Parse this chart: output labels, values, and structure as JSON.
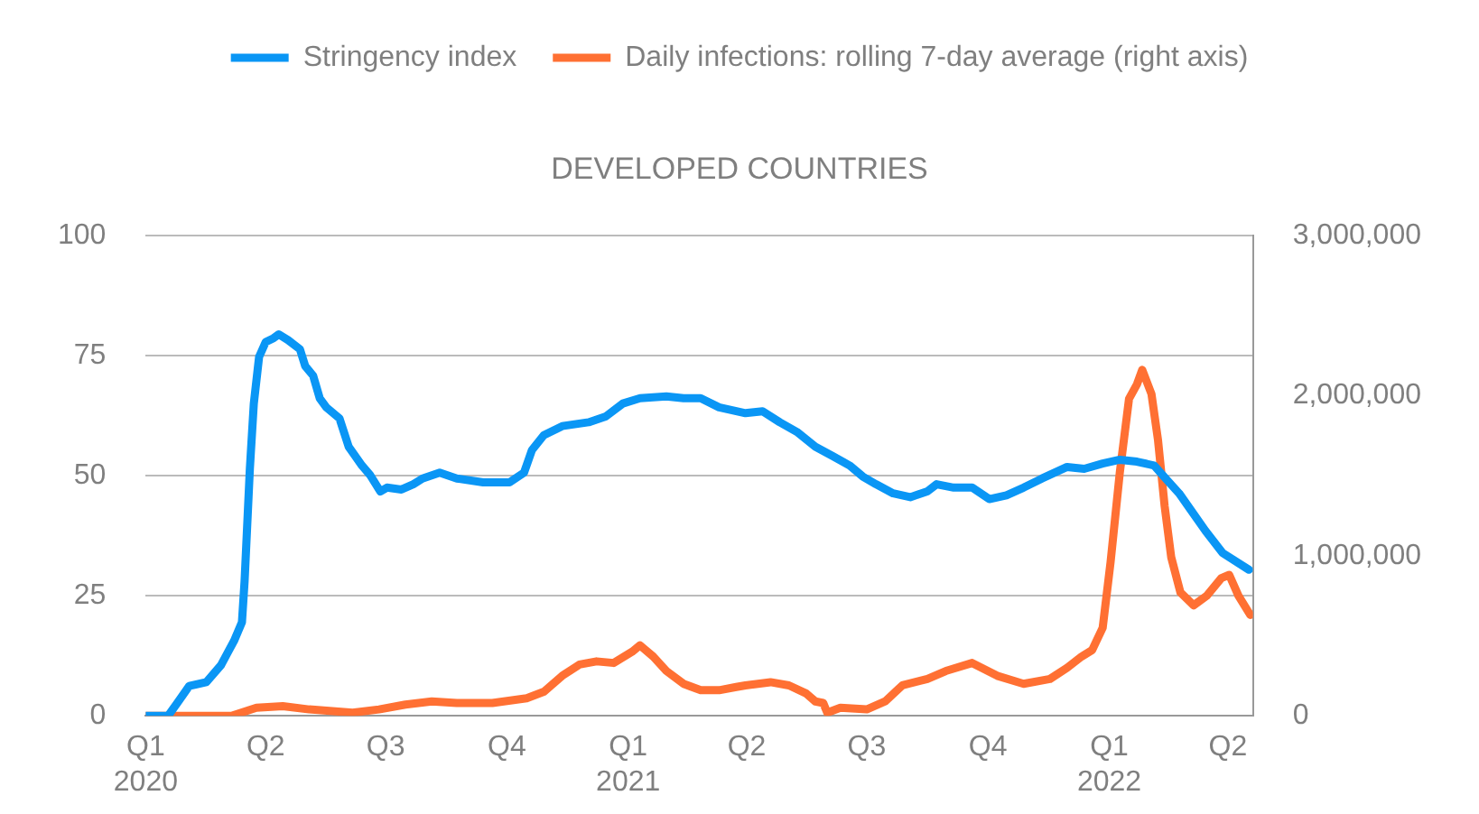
{
  "chart_data": {
    "type": "line",
    "title": "DEVELOPED COUNTRIES",
    "xlim": [
      "2020-01-01",
      "2022-04-20"
    ],
    "xticks": [
      {
        "value": "2020-01-01",
        "label": "Q1\n2020"
      },
      {
        "value": "2020-04-01",
        "label": "Q2"
      },
      {
        "value": "2020-07-01",
        "label": "Q3"
      },
      {
        "value": "2020-10-01",
        "label": "Q4"
      },
      {
        "value": "2021-01-01",
        "label": "Q1\n2021"
      },
      {
        "value": "2021-04-01",
        "label": "Q2"
      },
      {
        "value": "2021-07-01",
        "label": "Q3"
      },
      {
        "value": "2021-10-01",
        "label": "Q4"
      },
      {
        "value": "2022-01-01",
        "label": "Q1\n2022"
      },
      {
        "value": "2022-04-01",
        "label": "Q2"
      }
    ],
    "ylim": [
      0,
      100
    ],
    "yticks": [
      0,
      25,
      50,
      75,
      100
    ],
    "y2lim": [
      0,
      3000000
    ],
    "y2ticks": [
      0,
      {
        "value": 1000000,
        "label": "1,000,000"
      },
      {
        "value": 2000000,
        "label": "2,000,000"
      },
      {
        "value": 3000000,
        "label": "3,000,000"
      }
    ],
    "grid": "y",
    "legend": "top",
    "marker": "none",
    "line_style": "solid",
    "series": [
      {
        "name": "Stringency index",
        "color": "#0a96f5",
        "x": [
          "2020-01-01",
          "2020-01-18",
          "2020-01-25",
          "2020-02-03",
          "2020-02-16",
          "2020-02-27",
          "2020-03-08",
          "2020-03-14",
          "2020-03-16",
          "2020-03-20",
          "2020-03-23",
          "2020-03-27",
          "2020-04-01",
          "2020-04-07",
          "2020-04-11",
          "2020-04-18",
          "2020-04-27",
          "2020-05-01",
          "2020-05-07",
          "2020-05-12",
          "2020-05-17",
          "2020-05-27",
          "2020-06-03",
          "2020-06-13",
          "2020-06-19",
          "2020-06-27",
          "2020-07-02",
          "2020-07-13",
          "2020-07-22",
          "2020-07-29",
          "2020-08-11",
          "2020-08-24",
          "2020-09-13",
          "2020-10-03",
          "2020-10-14",
          "2020-10-20",
          "2020-10-29",
          "2020-11-12",
          "2020-12-02",
          "2020-12-15",
          "2020-12-28",
          "2021-01-10",
          "2021-01-30",
          "2021-02-12",
          "2021-02-25",
          "2021-03-11",
          "2021-03-31",
          "2021-04-13",
          "2021-04-26",
          "2021-05-09",
          "2021-05-23",
          "2021-06-05",
          "2021-06-18",
          "2021-06-28",
          "2021-07-08",
          "2021-07-21",
          "2021-08-03",
          "2021-08-16",
          "2021-08-23",
          "2021-09-05",
          "2021-09-19",
          "2021-10-02",
          "2021-10-15",
          "2021-10-28",
          "2021-11-11",
          "2021-11-30",
          "2021-12-13",
          "2021-12-27",
          "2022-01-09",
          "2022-01-22",
          "2022-02-04",
          "2022-02-14",
          "2022-02-23",
          "2022-03-04",
          "2022-03-15",
          "2022-03-28",
          "2022-04-17"
        ],
        "values": [
          0,
          0,
          2.7,
          6.2,
          7.0,
          10.5,
          15.6,
          19.5,
          28.0,
          51.4,
          65.0,
          74.7,
          77.8,
          78.6,
          79.4,
          78.2,
          76.3,
          72.8,
          70.8,
          66.1,
          64.2,
          61.9,
          56.0,
          52.1,
          50.2,
          46.7,
          47.5,
          47.1,
          48.2,
          49.4,
          50.6,
          49.4,
          48.6,
          48.6,
          50.6,
          55.3,
          58.4,
          60.3,
          61.1,
          62.3,
          65.0,
          66.1,
          66.5,
          66.1,
          66.1,
          64.2,
          63.0,
          63.4,
          61.1,
          59.1,
          56.0,
          54.1,
          52.1,
          49.8,
          48.2,
          46.3,
          45.5,
          46.7,
          48.2,
          47.5,
          47.5,
          45.1,
          45.9,
          47.5,
          49.4,
          51.8,
          51.4,
          52.5,
          53.3,
          52.9,
          52.1,
          49.0,
          46.3,
          42.8,
          38.5,
          33.9,
          30.4
        ]
      },
      {
        "name": "Daily infections: rolling 7-day average (right axis)",
        "color": "#ff7033",
        "axis": "y2",
        "x": [
          "2020-01-01",
          "2020-03-06",
          "2020-03-25",
          "2020-04-14",
          "2020-05-04",
          "2020-06-06",
          "2020-06-26",
          "2020-07-16",
          "2020-08-05",
          "2020-08-24",
          "2020-09-20",
          "2020-10-16",
          "2020-10-29",
          "2020-11-12",
          "2020-11-25",
          "2020-12-08",
          "2020-12-21",
          "2021-01-04",
          "2021-01-10",
          "2021-01-20",
          "2021-01-30",
          "2021-02-12",
          "2021-02-25",
          "2021-03-11",
          "2021-03-24",
          "2021-03-31",
          "2021-04-19",
          "2021-05-03",
          "2021-05-16",
          "2021-05-23",
          "2021-05-29",
          "2021-06-01",
          "2021-06-11",
          "2021-07-01",
          "2021-07-15",
          "2021-07-28",
          "2021-08-16",
          "2021-08-30",
          "2021-09-19",
          "2021-10-08",
          "2021-10-28",
          "2021-11-17",
          "2021-11-30",
          "2021-12-11",
          "2021-12-19",
          "2021-12-27",
          "2022-01-02",
          "2022-01-09",
          "2022-01-16",
          "2022-01-22",
          "2022-01-26",
          "2022-02-02",
          "2022-02-07",
          "2022-02-12",
          "2022-02-17",
          "2022-02-24",
          "2022-03-06",
          "2022-03-16",
          "2022-03-27",
          "2022-04-02",
          "2022-04-09",
          "2022-04-18"
        ],
        "values": [
          0,
          0,
          50000,
          60000,
          40000,
          20000,
          40000,
          70000,
          90000,
          80000,
          80000,
          110000,
          150000,
          250000,
          320000,
          340000,
          330000,
          400000,
          440000,
          370000,
          280000,
          200000,
          160000,
          160000,
          180000,
          190000,
          210000,
          190000,
          140000,
          90000,
          80000,
          20000,
          50000,
          40000,
          90000,
          190000,
          230000,
          280000,
          330000,
          250000,
          200000,
          230000,
          300000,
          370000,
          410000,
          550000,
          960000,
          1520000,
          1980000,
          2070000,
          2160000,
          2010000,
          1720000,
          1310000,
          990000,
          770000,
          690000,
          750000,
          860000,
          880000,
          750000,
          630000
        ]
      }
    ]
  }
}
